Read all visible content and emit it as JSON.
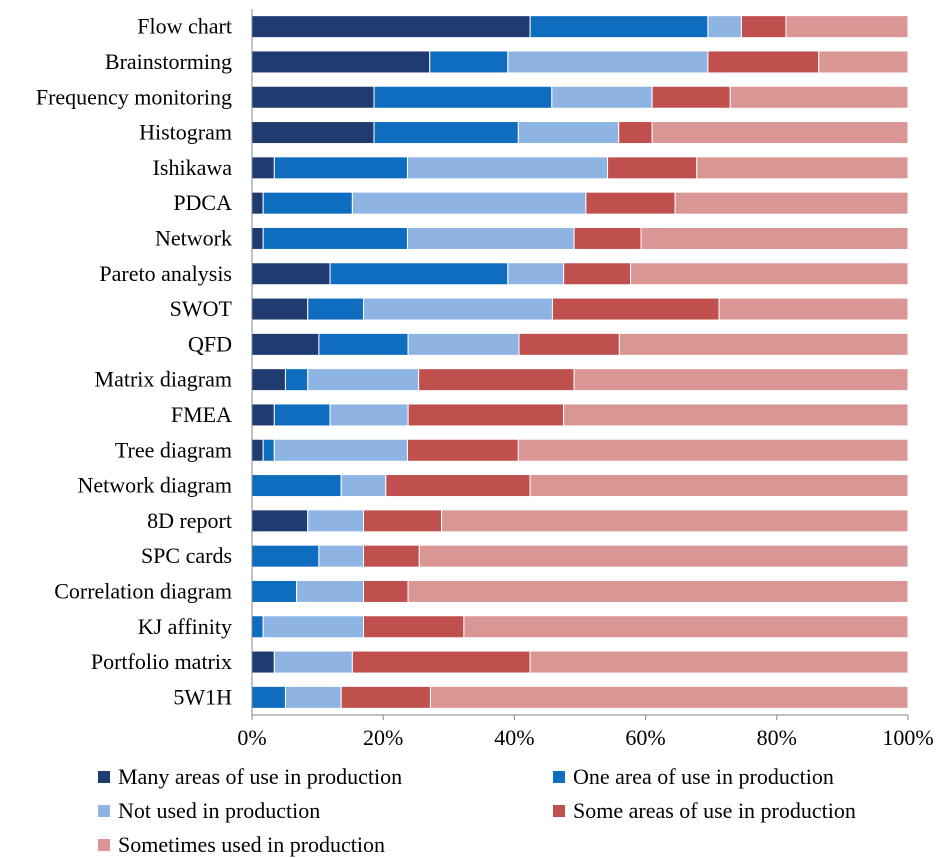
{
  "chart_data": {
    "type": "bar",
    "orientation": "horizontal",
    "stacked": "percent",
    "title": "",
    "xlabel": "",
    "ylabel": "",
    "xlim": [
      0,
      100
    ],
    "x_ticks": [
      "0%",
      "20%",
      "40%",
      "60%",
      "80%",
      "100%"
    ],
    "grid": false,
    "legend_position": "bottom",
    "categories": [
      "Flow chart",
      "Brainstorming",
      "Frequency monitoring",
      "Histogram",
      "Ishikawa",
      "PDCA",
      "Network",
      "Pareto analysis",
      "SWOT",
      "QFD",
      "Matrix diagram",
      "FMEA",
      "Tree diagram",
      "Network diagram",
      "8D report",
      "SPC cards",
      "Correlation diagram",
      "KJ affinity",
      "Portfolio matrix",
      "5W1H"
    ],
    "series": [
      {
        "name": "Many areas of use in production",
        "color": "#1F3B6F",
        "values": [
          42.4,
          27.1,
          18.6,
          18.6,
          3.4,
          1.7,
          1.7,
          11.9,
          8.5,
          10.2,
          5.1,
          3.4,
          1.7,
          0,
          8.5,
          0,
          0,
          0,
          3.4,
          0
        ]
      },
      {
        "name": "One area of use in production",
        "color": "#0F6DBF",
        "values": [
          27.1,
          11.9,
          27.1,
          22.0,
          20.3,
          13.6,
          22.0,
          27.1,
          8.5,
          13.6,
          3.4,
          8.5,
          1.7,
          13.6,
          0,
          10.2,
          6.8,
          1.7,
          0,
          5.1
        ]
      },
      {
        "name": "Not used in production",
        "color": "#8EB4E3",
        "values": [
          5.1,
          30.5,
          15.3,
          15.3,
          30.5,
          35.6,
          25.4,
          8.5,
          28.8,
          16.9,
          16.9,
          11.9,
          20.3,
          6.8,
          8.5,
          6.8,
          10.2,
          15.3,
          11.9,
          8.5
        ]
      },
      {
        "name": "Some areas of use in production",
        "color": "#C0504D",
        "values": [
          6.8,
          16.9,
          11.9,
          5.1,
          13.6,
          13.6,
          10.2,
          10.2,
          25.4,
          15.3,
          23.7,
          23.7,
          16.9,
          22.0,
          11.9,
          8.5,
          6.8,
          15.3,
          27.1,
          13.6
        ]
      },
      {
        "name": "Sometimes used in production",
        "color": "#D99694",
        "values": [
          18.6,
          13.6,
          27.1,
          39.0,
          32.2,
          35.5,
          40.7,
          42.3,
          28.8,
          44.0,
          50.9,
          52.5,
          59.4,
          57.6,
          71.1,
          74.5,
          76.2,
          67.7,
          57.6,
          72.8
        ]
      }
    ]
  }
}
